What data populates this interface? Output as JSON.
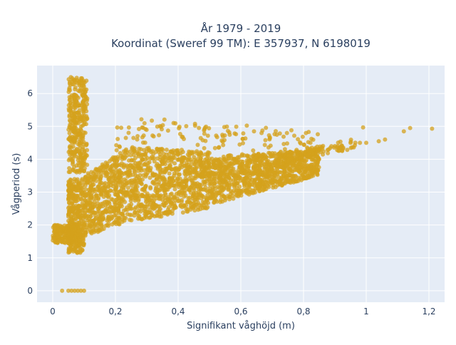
{
  "chart_data": {
    "type": "scatter",
    "title_lines": [
      "År 1979 - 2019",
      "Koordinat (Sweref 99 TM): E 357937, N 6198019"
    ],
    "xlabel": "Signifikant våghöjd (m)",
    "ylabel": "Vågperiod (s)",
    "xlim": [
      -0.05,
      1.25
    ],
    "ylim": [
      -0.35,
      6.85
    ],
    "x_ticks": [
      {
        "value": 0,
        "label": "0"
      },
      {
        "value": 0.2,
        "label": "0,2"
      },
      {
        "value": 0.4,
        "label": "0,4"
      },
      {
        "value": 0.6,
        "label": "0,6"
      },
      {
        "value": 0.8,
        "label": "0,8"
      },
      {
        "value": 1.0,
        "label": "1"
      },
      {
        "value": 1.2,
        "label": "1,2"
      }
    ],
    "y_ticks": [
      {
        "value": 0,
        "label": "0"
      },
      {
        "value": 1,
        "label": "1"
      },
      {
        "value": 2,
        "label": "2"
      },
      {
        "value": 3,
        "label": "3"
      },
      {
        "value": 4,
        "label": "4"
      },
      {
        "value": 5,
        "label": "5"
      },
      {
        "value": 6,
        "label": "6"
      }
    ],
    "grid": true,
    "marker_color": "#D4A21C",
    "plot_bgcolor": "#E5ECF6",
    "series": [
      {
        "points": [
          [
            0.08,
            2.3
          ],
          [
            0.1,
            2.0
          ],
          [
            0.12,
            2.6
          ],
          [
            0.15,
            2.2
          ],
          [
            0.18,
            2.9
          ],
          [
            0.2,
            2.5
          ],
          [
            0.22,
            3.1
          ],
          [
            0.25,
            2.8
          ],
          [
            0.28,
            3.3
          ],
          [
            0.3,
            2.9
          ],
          [
            0.32,
            3.5
          ],
          [
            0.35,
            3.2
          ],
          [
            0.38,
            3.7
          ],
          [
            0.4,
            3.4
          ],
          [
            0.42,
            3.8
          ],
          [
            0.45,
            3.6
          ],
          [
            0.48,
            3.9
          ],
          [
            0.5,
            3.5
          ],
          [
            0.52,
            3.8
          ],
          [
            0.55,
            3.7
          ],
          [
            0.58,
            3.9
          ],
          [
            0.6,
            3.6
          ],
          [
            0.62,
            3.9
          ],
          [
            0.65,
            3.8
          ],
          [
            0.68,
            4.0
          ],
          [
            0.7,
            3.9
          ],
          [
            0.72,
            4.0
          ],
          [
            0.75,
            4.1
          ],
          [
            0.78,
            4.1
          ],
          [
            0.8,
            4.2
          ],
          [
            0.82,
            4.2
          ],
          [
            0.85,
            4.3
          ],
          [
            0.88,
            4.3
          ],
          [
            0.9,
            4.4
          ],
          [
            0.95,
            4.5
          ],
          [
            0.98,
            4.5
          ],
          [
            1.0,
            4.5
          ],
          [
            1.04,
            4.55
          ],
          [
            1.06,
            4.6
          ],
          [
            1.12,
            4.85
          ],
          [
            1.14,
            4.95
          ],
          [
            1.21,
            4.93
          ],
          [
            0.99,
            4.97
          ],
          [
            0.03,
            0.0
          ],
          [
            0.05,
            0.0
          ],
          [
            0.07,
            0.0
          ],
          [
            0.08,
            0.0
          ],
          [
            0.1,
            0.0
          ],
          [
            0.06,
            0.0
          ],
          [
            0.09,
            0.0
          ]
        ]
      }
    ]
  }
}
